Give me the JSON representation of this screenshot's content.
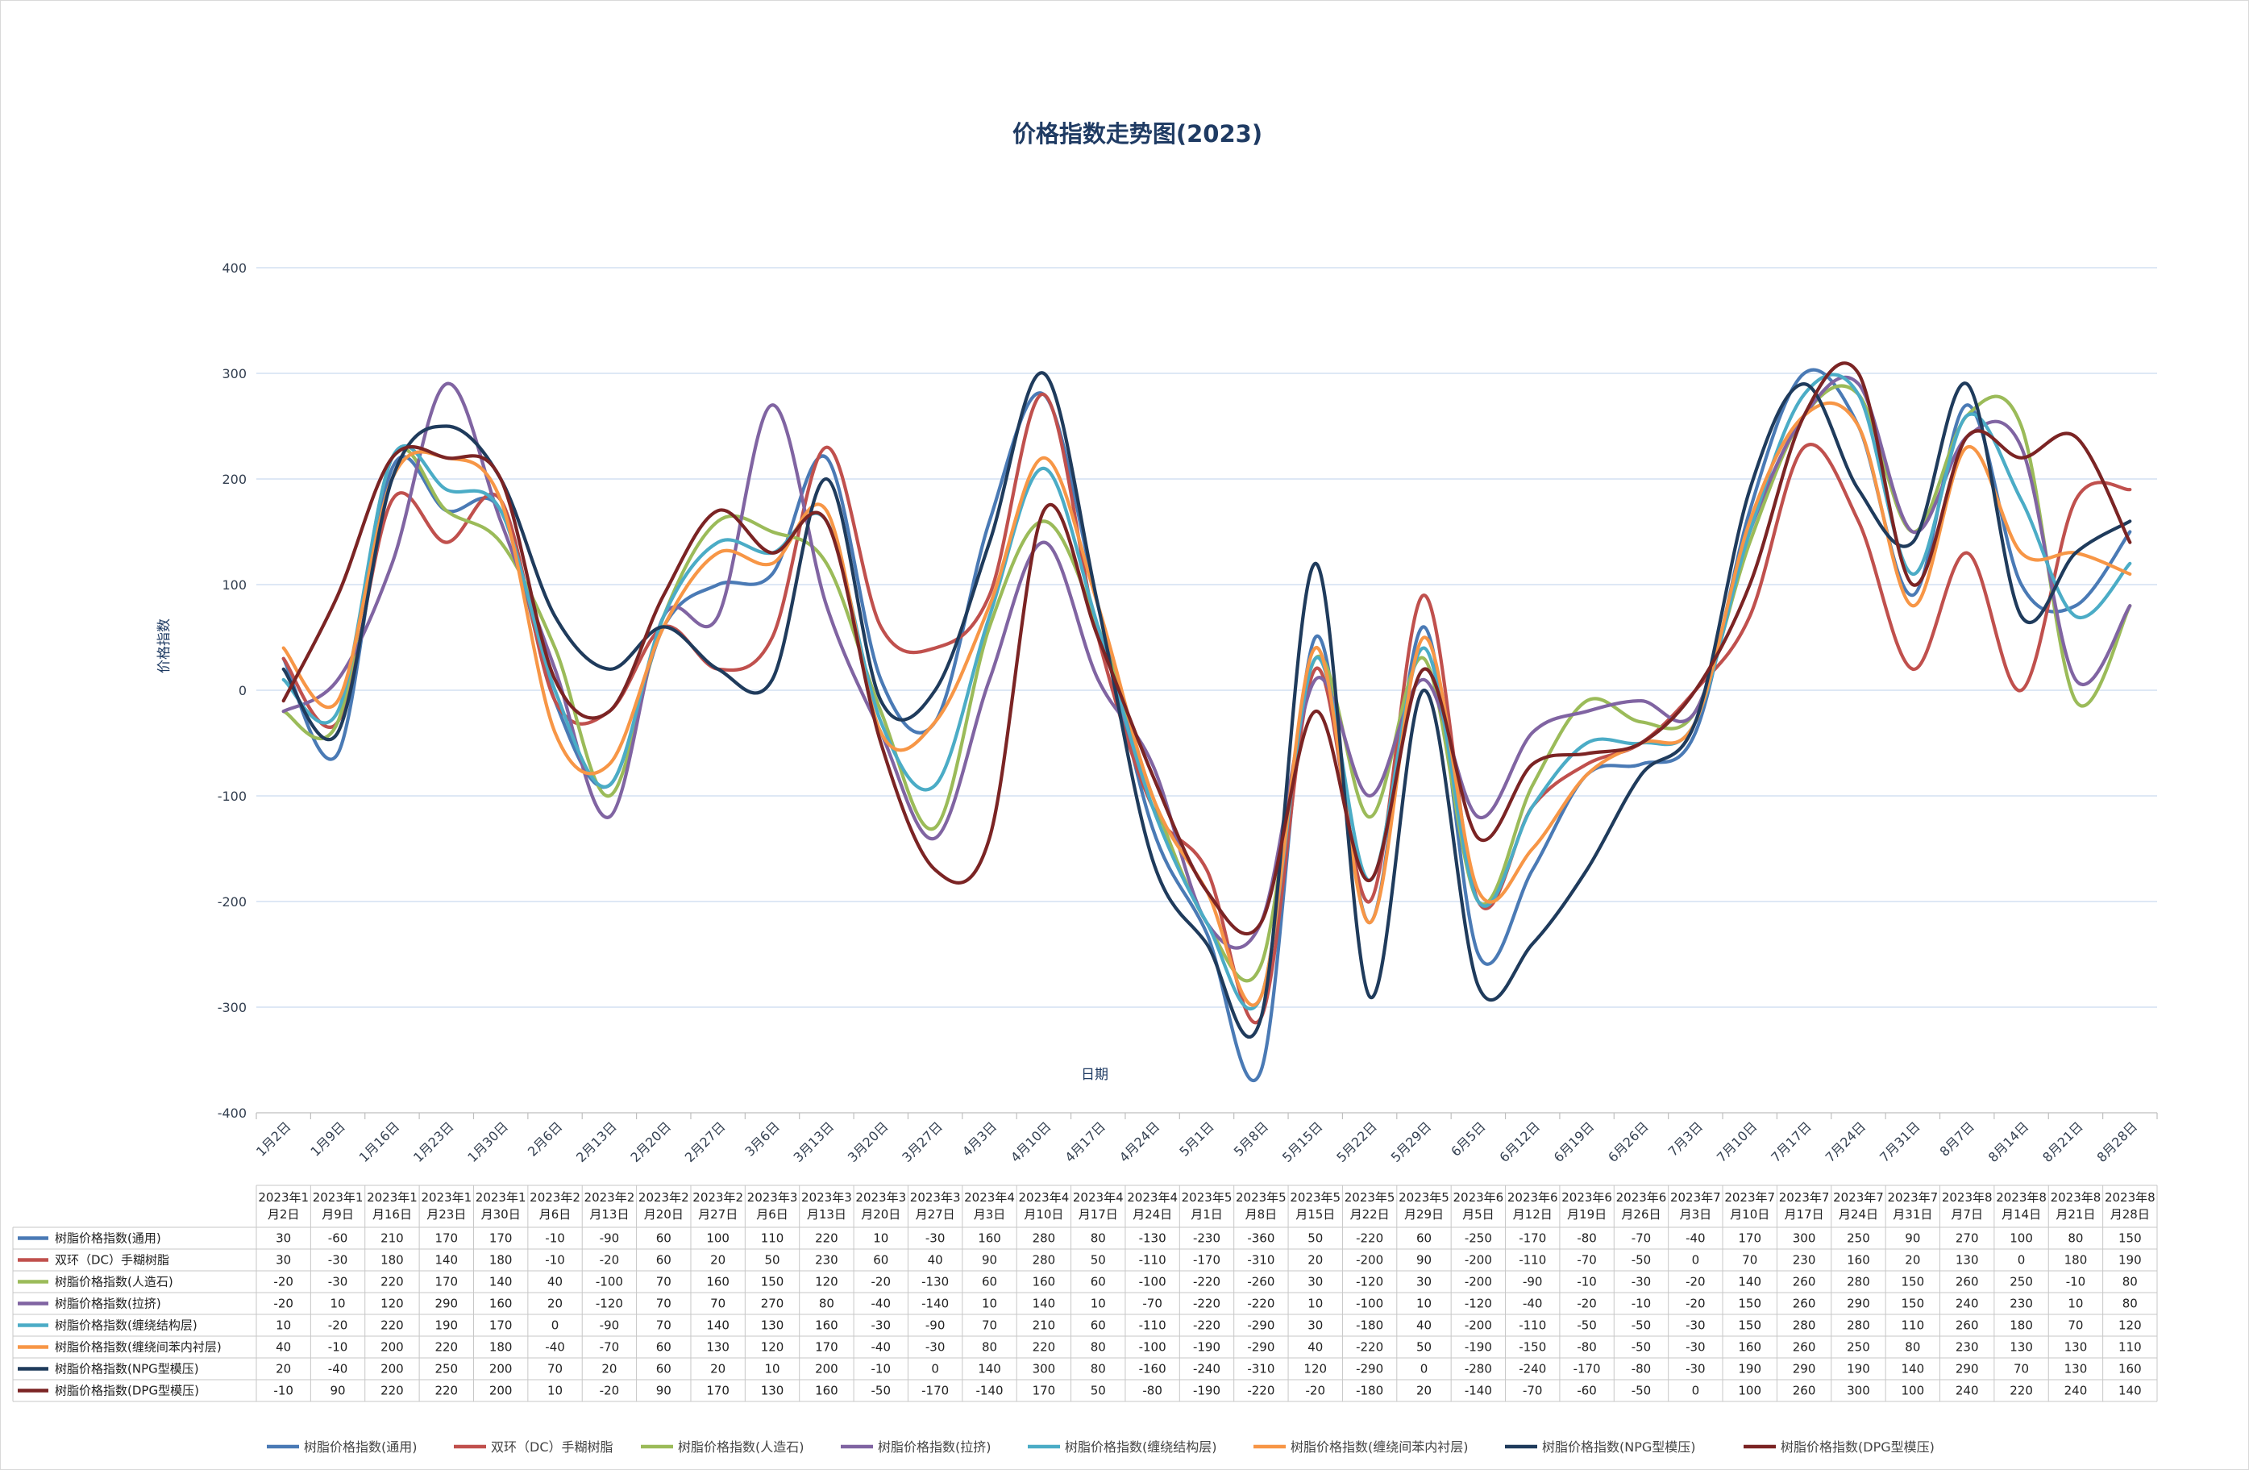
{
  "chart_data": {
    "type": "line",
    "title": "价格指数走势图(2023)",
    "xlabel": "日期",
    "ylabel": "价格指数",
    "ylim": [
      -400,
      400
    ],
    "yticks": [
      "400",
      "300",
      "200",
      "100",
      "0",
      "-100",
      "-200",
      "-300",
      "-400"
    ],
    "grid": true,
    "legend_position": "bottom",
    "categories": [
      "1月2日",
      "1月9日",
      "1月16日",
      "1月23日",
      "1月30日",
      "2月6日",
      "2月13日",
      "2月20日",
      "2月27日",
      "3月6日",
      "3月13日",
      "3月20日",
      "3月27日",
      "4月3日",
      "4月10日",
      "4月17日",
      "4月24日",
      "5月1日",
      "5月8日",
      "5月15日",
      "5月22日",
      "5月29日",
      "6月5日",
      "6月12日",
      "6月19日",
      "6月26日",
      "7月3日",
      "7月10日",
      "7月17日",
      "7月24日",
      "7月31日",
      "8月7日",
      "8月14日",
      "8月21日",
      "8月28日"
    ],
    "table_header": [
      [
        "2023年1",
        "月2日"
      ],
      [
        "2023年1",
        "月9日"
      ],
      [
        "2023年1",
        "月16日"
      ],
      [
        "2023年1",
        "月23日"
      ],
      [
        "2023年1",
        "月30日"
      ],
      [
        "2023年2",
        "月6日"
      ],
      [
        "2023年2",
        "月13日"
      ],
      [
        "2023年2",
        "月20日"
      ],
      [
        "2023年2",
        "月27日"
      ],
      [
        "2023年3",
        "月6日"
      ],
      [
        "2023年3",
        "月13日"
      ],
      [
        "2023年3",
        "月20日"
      ],
      [
        "2023年3",
        "月27日"
      ],
      [
        "2023年4",
        "月3日"
      ],
      [
        "2023年4",
        "月10日"
      ],
      [
        "2023年4",
        "月17日"
      ],
      [
        "2023年4",
        "月24日"
      ],
      [
        "2023年5",
        "月1日"
      ],
      [
        "2023年5",
        "月8日"
      ],
      [
        "2023年5",
        "月15日"
      ],
      [
        "2023年5",
        "月22日"
      ],
      [
        "2023年5",
        "月29日"
      ],
      [
        "2023年6",
        "月5日"
      ],
      [
        "2023年6",
        "月12日"
      ],
      [
        "2023年6",
        "月19日"
      ],
      [
        "2023年6",
        "月26日"
      ],
      [
        "2023年7",
        "月3日"
      ],
      [
        "2023年7",
        "月10日"
      ],
      [
        "2023年7",
        "月17日"
      ],
      [
        "2023年7",
        "月24日"
      ],
      [
        "2023年7",
        "月31日"
      ],
      [
        "2023年8",
        "月7日"
      ],
      [
        "2023年8",
        "月14日"
      ],
      [
        "2023年8",
        "月21日"
      ],
      [
        "2023年8",
        "月28日"
      ]
    ],
    "series": [
      {
        "name": "树脂价格指数(通用)",
        "color": "#4a7ab5",
        "values": [
          30,
          -60,
          210,
          170,
          170,
          -10,
          -90,
          60,
          100,
          110,
          220,
          10,
          -30,
          160,
          280,
          80,
          -130,
          -230,
          -360,
          50,
          -220,
          60,
          -250,
          -170,
          -80,
          -70,
          -40,
          170,
          300,
          250,
          90,
          270,
          100,
          80,
          150
        ]
      },
      {
        "name": "双环（DC）手糊树脂",
        "color": "#c0504d",
        "values": [
          30,
          -30,
          180,
          140,
          180,
          -10,
          -20,
          60,
          20,
          50,
          230,
          60,
          40,
          90,
          280,
          50,
          -110,
          -170,
          -310,
          20,
          -200,
          90,
          -200,
          -110,
          -70,
          -50,
          0,
          70,
          230,
          160,
          20,
          130,
          0,
          180,
          190
        ]
      },
      {
        "name": "树脂价格指数(人造石)",
        "color": "#9bbb59",
        "values": [
          -20,
          -30,
          220,
          170,
          140,
          40,
          -100,
          70,
          160,
          150,
          120,
          -20,
          -130,
          60,
          160,
          60,
          -100,
          -220,
          -260,
          30,
          -120,
          30,
          -200,
          -90,
          -10,
          -30,
          -20,
          140,
          260,
          280,
          150,
          260,
          250,
          -10,
          80
        ]
      },
      {
        "name": "树脂价格指数(拉挤)",
        "color": "#8064a2",
        "values": [
          -20,
          10,
          120,
          290,
          160,
          20,
          -120,
          70,
          70,
          270,
          80,
          -40,
          -140,
          10,
          140,
          10,
          -70,
          -220,
          -220,
          10,
          -100,
          10,
          -120,
          -40,
          -20,
          -10,
          -20,
          150,
          260,
          290,
          150,
          240,
          230,
          10,
          80
        ]
      },
      {
        "name": "树脂价格指数(缠绕结构层)",
        "color": "#4bacc6",
        "values": [
          10,
          -20,
          220,
          190,
          170,
          0,
          -90,
          70,
          140,
          130,
          160,
          -30,
          -90,
          70,
          210,
          60,
          -110,
          -220,
          -290,
          30,
          -180,
          40,
          -200,
          -110,
          -50,
          -50,
          -30,
          150,
          280,
          280,
          110,
          260,
          180,
          70,
          120
        ]
      },
      {
        "name": "树脂价格指数(缠绕间苯内衬层)",
        "color": "#f79646",
        "values": [
          40,
          -10,
          200,
          220,
          180,
          -40,
          -70,
          60,
          130,
          120,
          170,
          -40,
          -30,
          80,
          220,
          80,
          -100,
          -190,
          -290,
          40,
          -220,
          50,
          -190,
          -150,
          -80,
          -50,
          -30,
          160,
          260,
          250,
          80,
          230,
          130,
          130,
          110
        ]
      },
      {
        "name": "树脂价格指数(NPG型模压)",
        "color": "#1f3b5c",
        "values": [
          20,
          -40,
          200,
          250,
          200,
          70,
          20,
          60,
          20,
          10,
          200,
          -10,
          0,
          140,
          300,
          80,
          -160,
          -240,
          -310,
          120,
          -290,
          0,
          -280,
          -240,
          -170,
          -80,
          -30,
          190,
          290,
          190,
          140,
          290,
          70,
          130,
          160
        ]
      },
      {
        "name": "树脂价格指数(DPG型模压)",
        "color": "#7b2424",
        "values": [
          -10,
          90,
          220,
          220,
          200,
          10,
          -20,
          90,
          170,
          130,
          160,
          -50,
          -170,
          -140,
          170,
          50,
          -80,
          -190,
          -220,
          -20,
          -180,
          20,
          -140,
          -70,
          -60,
          -50,
          0,
          100,
          260,
          300,
          100,
          240,
          220,
          240,
          140
        ]
      }
    ]
  }
}
